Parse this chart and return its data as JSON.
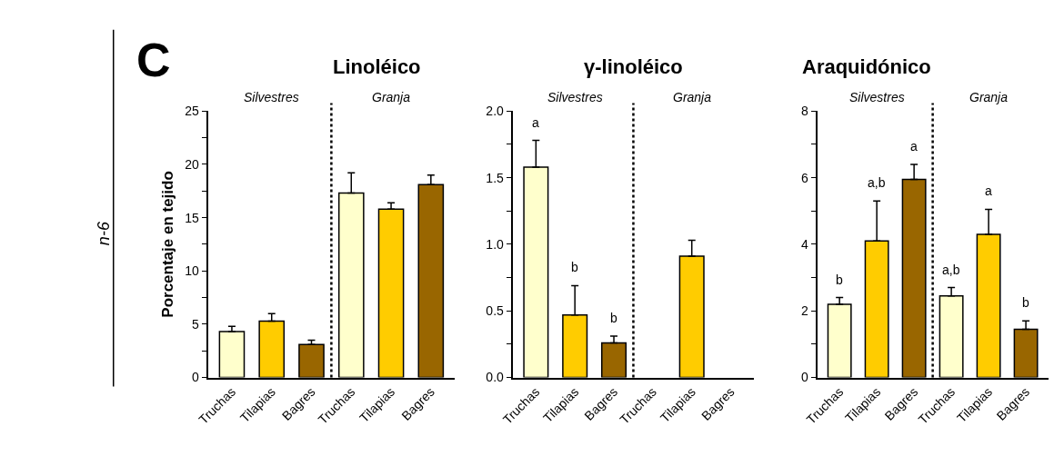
{
  "chart_data": [
    {
      "type": "bar",
      "title": "Linoléico",
      "ylabel": "Porcentaje en tejido",
      "categories": [
        "Truchas",
        "Tilapias",
        "Bagres",
        "Truchas",
        "Tilapias",
        "Bagres"
      ],
      "values": [
        4.3,
        5.3,
        3.1,
        17.3,
        15.8,
        18.1
      ],
      "errors": [
        [
          4.3,
          4.8
        ],
        [
          5.3,
          6.0
        ],
        [
          3.1,
          3.5
        ],
        [
          17.3,
          19.2
        ],
        [
          15.8,
          16.4
        ],
        [
          18.1,
          19.0
        ]
      ],
      "colors": [
        "#ffffcc",
        "#ffcc00",
        "#996600",
        "#ffffcc",
        "#ffcc00",
        "#996600"
      ],
      "ylim": [
        0,
        25
      ],
      "yticks": [
        0,
        {
          "value": 2.5,
          "label": null
        },
        5,
        {
          "value": 7.5,
          "label": null
        },
        10,
        {
          "value": 12.5,
          "label": null
        },
        15,
        {
          "value": 17.5,
          "label": null
        },
        20,
        {
          "value": 22.5,
          "label": null
        },
        25
      ],
      "annotations": [
        "Silvestres",
        "Granja",
        "C",
        "n-6"
      ]
    },
    {
      "type": "bar",
      "title": "γ-linoléico",
      "categories": [
        "Truchas",
        "Tilapias",
        "Bagres",
        "Truchas",
        "Tilapias",
        "Bagres"
      ],
      "values": [
        1.58,
        0.47,
        0.26,
        null,
        0.91,
        null
      ],
      "errors": [
        [
          1.58,
          1.78
        ],
        [
          0.47,
          0.69
        ],
        [
          0.26,
          0.31
        ],
        null,
        [
          0.91,
          1.03
        ],
        null
      ],
      "colors": [
        "#ffffcc",
        "#ffcc00",
        "#996600",
        "#ffffcc",
        "#ffcc00",
        "#996600"
      ],
      "ylim": [
        0,
        2.0
      ],
      "yticks": [
        {
          "value": 0,
          "label": "0.0"
        },
        {
          "value": 0.25,
          "label": null
        },
        0.5,
        {
          "value": 0.75,
          "label": null
        },
        {
          "value": 1,
          "label": "1.0"
        },
        {
          "value": 1.25,
          "label": null
        },
        1.5,
        {
          "value": 1.75,
          "label": null
        },
        {
          "value": 2,
          "label": "2.0"
        }
      ],
      "annotations": [
        "Silvestres",
        "Granja",
        "a",
        "b",
        "b"
      ]
    },
    {
      "type": "bar",
      "title": "Araquidónico",
      "categories": [
        "Truchas",
        "Tilapias",
        "Bagres",
        "Truchas",
        "Tilapias",
        "Bagres"
      ],
      "values": [
        2.2,
        4.1,
        5.95,
        2.45,
        4.3,
        1.45
      ],
      "errors": [
        [
          2.2,
          2.4
        ],
        [
          4.1,
          5.3
        ],
        [
          5.95,
          6.4
        ],
        [
          2.45,
          2.7
        ],
        [
          4.3,
          5.05
        ],
        [
          1.45,
          1.7
        ]
      ],
      "colors": [
        "#ffffcc",
        "#ffcc00",
        "#996600",
        "#ffffcc",
        "#ffcc00",
        "#996600"
      ],
      "ylim": [
        0,
        8
      ],
      "yticks": [
        0,
        {
          "value": 1,
          "label": null
        },
        2,
        {
          "value": 3,
          "label": null
        },
        4,
        {
          "value": 5,
          "label": null
        },
        6,
        {
          "value": 7,
          "label": null
        },
        8
      ],
      "annotations": [
        "Silvestres",
        "Granja",
        "b",
        "a,b",
        "a",
        "a,b",
        "a",
        "b"
      ]
    }
  ]
}
